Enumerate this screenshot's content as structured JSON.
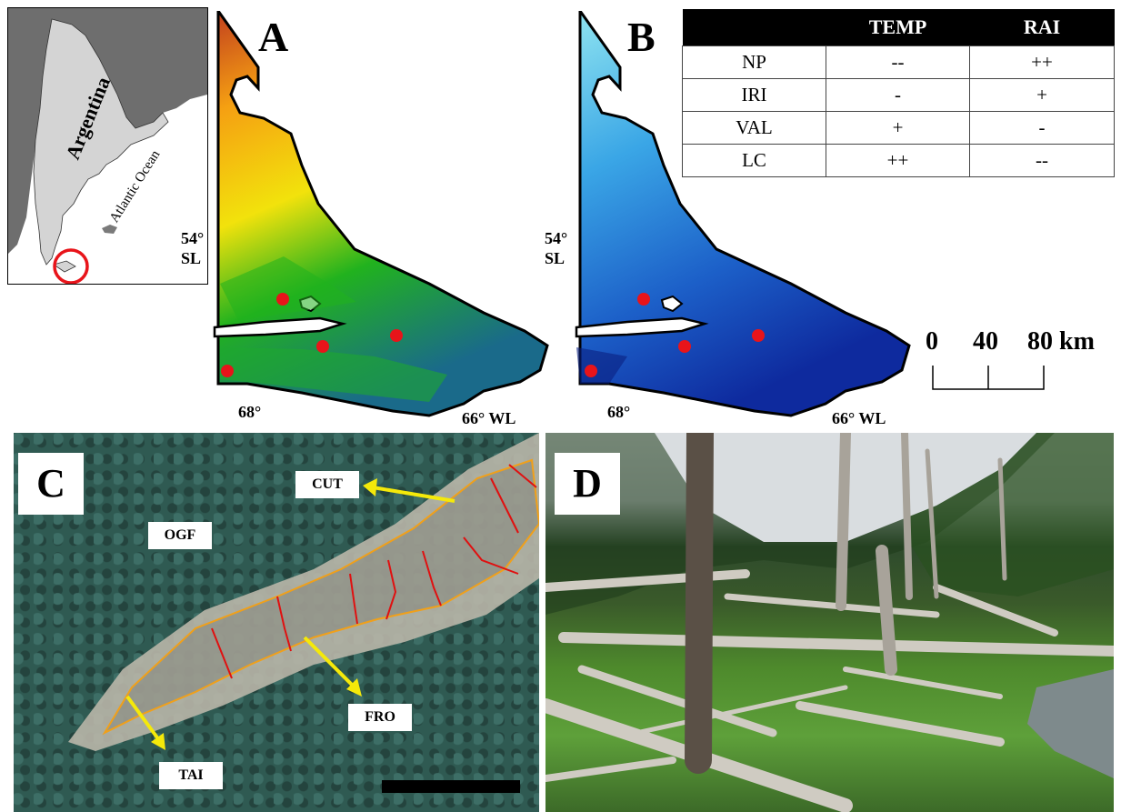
{
  "inset": {
    "country_label": "Argentina",
    "ocean_label": "Atlantic Ocean"
  },
  "panel_a": {
    "letter": "A",
    "lat_label_top": "54°",
    "lat_label_bottom": "SL",
    "lon_label_left": "68°",
    "lon_label_right": "66° WL",
    "color_ramp": [
      "#c2401e",
      "#f5a012",
      "#f2e20c",
      "#21b21e",
      "#1a6a8a"
    ]
  },
  "panel_b": {
    "letter": "B",
    "lat_label_top": "54°",
    "lat_label_bottom": "SL",
    "lon_label_left": "68°",
    "lon_label_right": "66° WL",
    "color_ramp": [
      "#8fe4f0",
      "#3aa6e6",
      "#1c5fc8",
      "#0e2a9e"
    ]
  },
  "legend_table": {
    "headers": [
      "",
      "TEMP",
      "RAI"
    ],
    "rows": [
      [
        "NP",
        "--",
        "++"
      ],
      [
        "IRI",
        "-",
        "+"
      ],
      [
        "VAL",
        "+",
        "-"
      ],
      [
        "LC",
        "++",
        "--"
      ]
    ]
  },
  "scale_bar": {
    "labels": [
      "0",
      "40",
      "80 km"
    ]
  },
  "panel_c": {
    "letter": "C",
    "labels": {
      "cut": "CUT",
      "ogf": "OGF",
      "fro": "FRO",
      "tai": "TAI"
    }
  },
  "panel_d": {
    "letter": "D"
  },
  "colors": {
    "sample_sites": "#e8141a",
    "annotation_arrows": "#f5e90a",
    "pond_outline": "#f0a01a",
    "dam_lines": "#e01010",
    "forest": "#2f5a52",
    "grass": "#5a9a2a"
  }
}
